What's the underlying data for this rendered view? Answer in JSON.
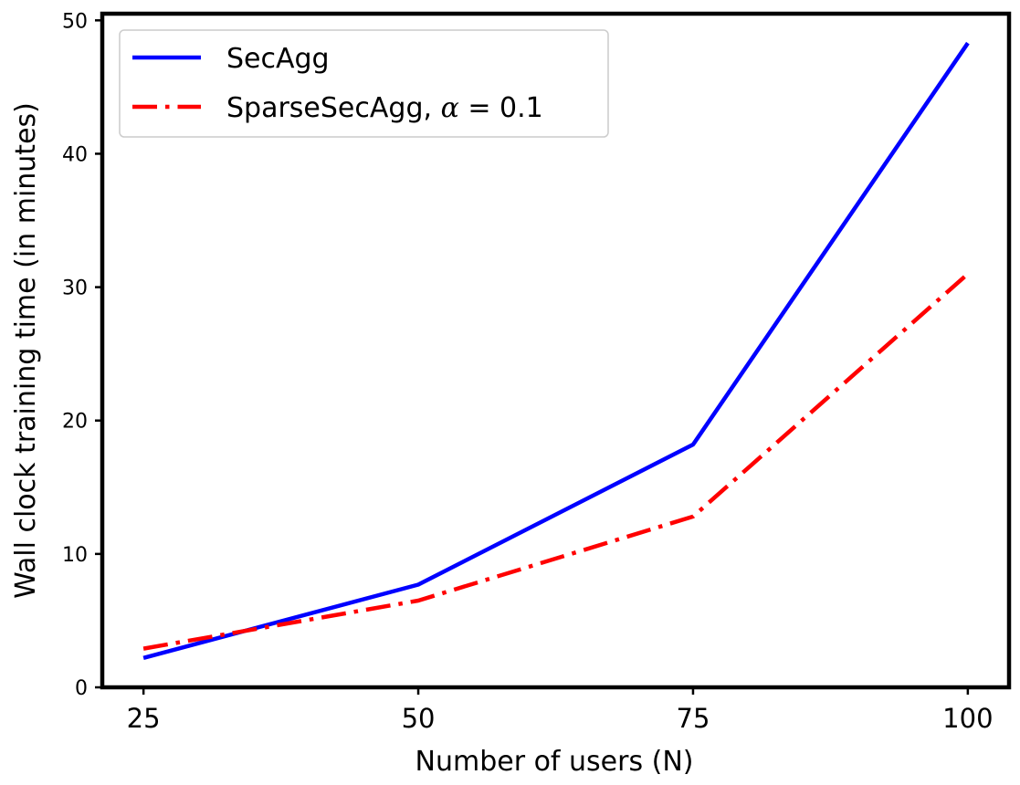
{
  "chart_data": {
    "type": "line",
    "title": "",
    "xlabel": "Number of users (N)",
    "ylabel": "Wall clock training time (in minutes)",
    "x": [
      25,
      50,
      75,
      100
    ],
    "xticks": [
      "25",
      "50",
      "75",
      "100"
    ],
    "yticks": [
      "0",
      "10",
      "20",
      "30",
      "40",
      "50"
    ],
    "xlim": [
      21.25,
      103.75
    ],
    "ylim": [
      0,
      50.5
    ],
    "grid": false,
    "legend_position": "top-left",
    "series": [
      {
        "name": "SecAgg",
        "legend_text": "SecAgg",
        "values": [
          2.2,
          7.7,
          18.2,
          48.3
        ],
        "color": "#0000ff",
        "style": "solid"
      },
      {
        "name": "SparseSecAgg, α = 0.1",
        "legend_text": "SparseSecAgg, ",
        "legend_alpha": "α",
        "legend_eq": " = 0.1",
        "values": [
          2.9,
          6.5,
          12.8,
          31.0
        ],
        "color": "#ff0000",
        "style": "dashdot"
      }
    ]
  }
}
